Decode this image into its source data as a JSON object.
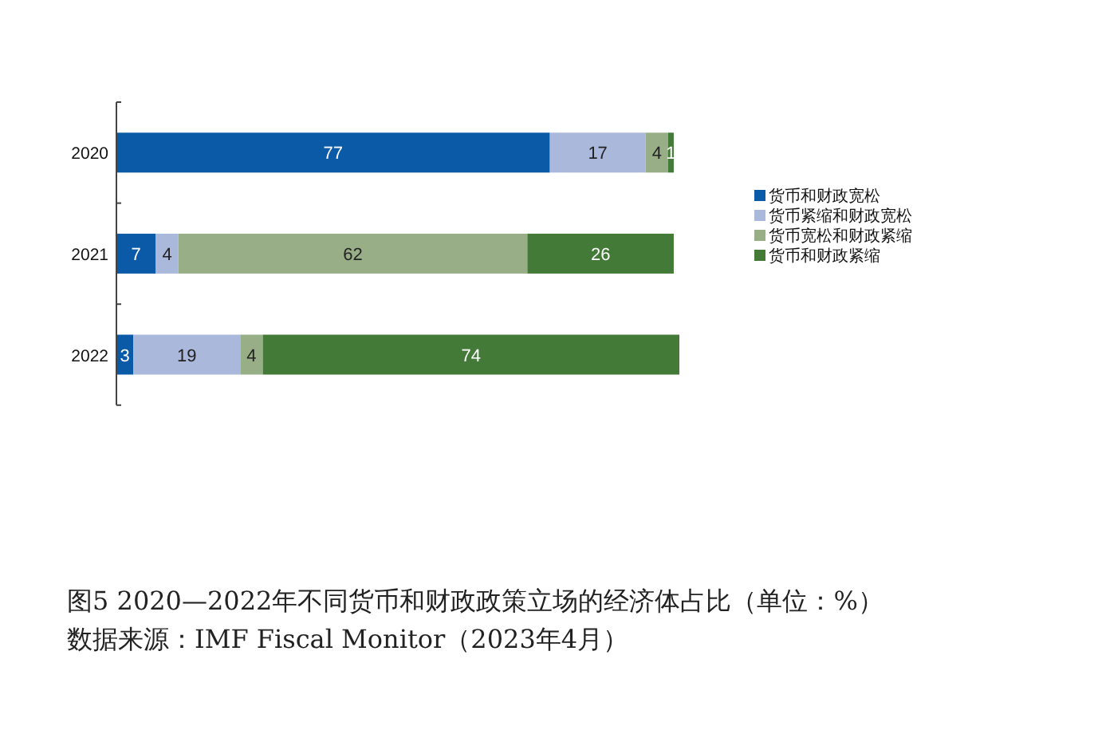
{
  "chart_data": {
    "type": "bar",
    "orientation": "horizontal",
    "stacked": true,
    "data_labels": true,
    "legend": "right",
    "title": "图5  2020—2022年不同货币和财政政策立场的经济体占比（单位：%）",
    "annotations": [
      "数据来源：IMF Fiscal Monitor（2023年4月）"
    ],
    "categories": [
      "2020",
      "2021",
      "2022"
    ],
    "series": [
      {
        "name": "货币和财政宽松",
        "color": "#0a5aa8",
        "values": [
          77,
          7,
          3
        ]
      },
      {
        "name": "货币紧缩和财政宽松",
        "color": "#aab8dc",
        "values": [
          17,
          4,
          19
        ]
      },
      {
        "name": "货币宽松和财政紧缩",
        "color": "#98ae86",
        "values": [
          4,
          62,
          4
        ]
      },
      {
        "name": "货币和财政紧缩",
        "color": "#437a38",
        "values": [
          1,
          26,
          74
        ]
      }
    ]
  }
}
